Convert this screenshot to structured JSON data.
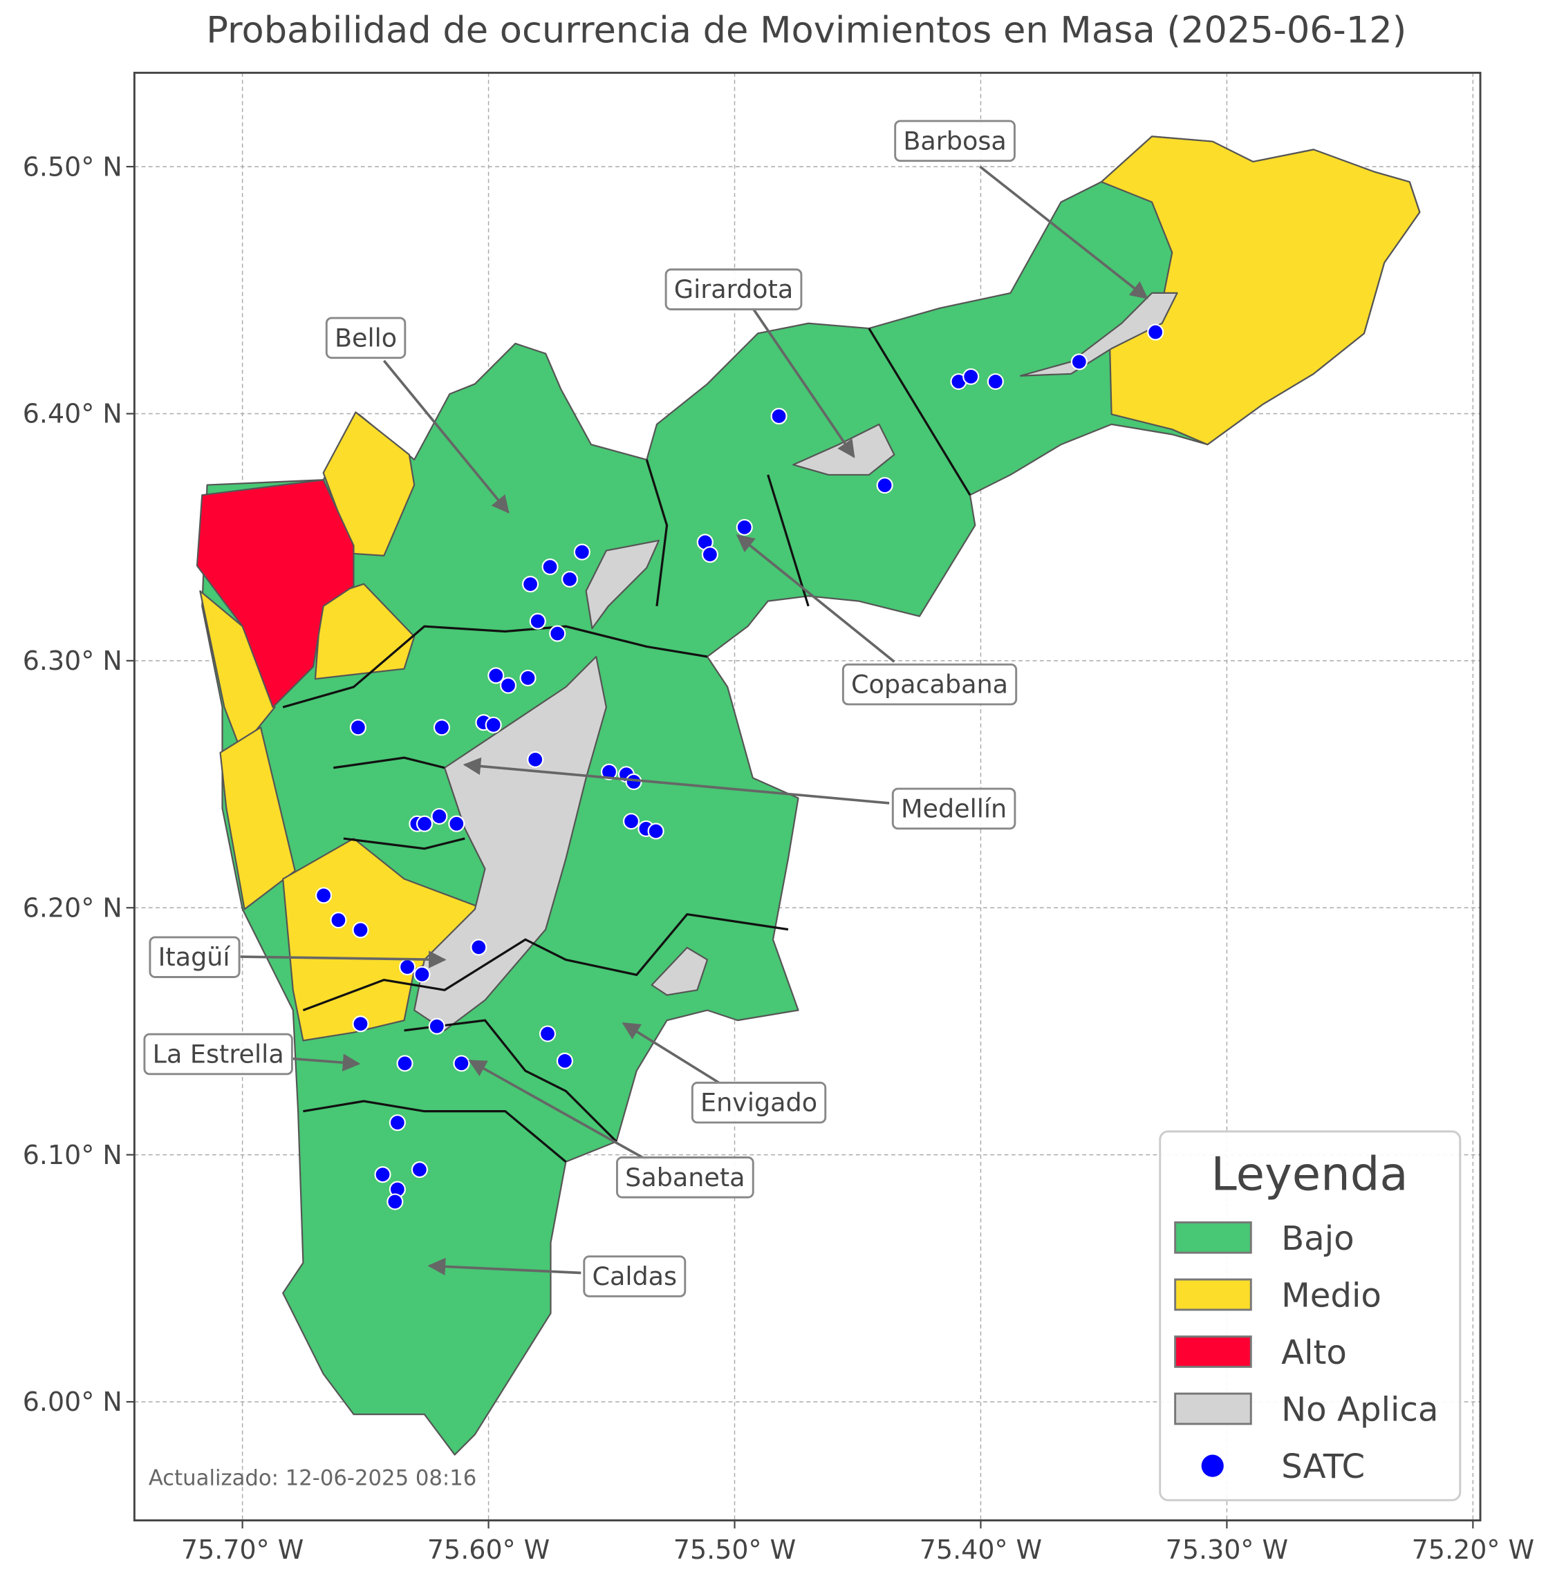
{
  "title": "Probabilidad de ocurrencia de Movimientos en Masa (2025-06-12)",
  "map": {
    "xlim": [
      -75.7439,
      -75.197
    ],
    "ylim": [
      5.952,
      6.538
    ],
    "xticks": [
      {
        "value": -75.7,
        "label": "75.70° W"
      },
      {
        "value": -75.6,
        "label": "75.60° W"
      },
      {
        "value": -75.5,
        "label": "75.50° W"
      },
      {
        "value": -75.4,
        "label": "75.40° W"
      },
      {
        "value": -75.3,
        "label": "75.30° W"
      },
      {
        "value": -75.2,
        "label": "75.20° W"
      }
    ],
    "yticks": [
      {
        "value": 6.0,
        "label": "6.00° N"
      },
      {
        "value": 6.1,
        "label": "6.10° N"
      },
      {
        "value": 6.2,
        "label": "6.20° N"
      },
      {
        "value": 6.3,
        "label": "6.30° N"
      },
      {
        "value": 6.4,
        "label": "6.40° N"
      },
      {
        "value": 6.5,
        "label": "6.50° N"
      }
    ],
    "grid": true
  },
  "stations": {
    "name": "SATC",
    "color": "#0000ff",
    "lon": [
      -75.329,
      -75.36,
      -75.409,
      -75.404,
      -75.394,
      -75.482,
      -75.439,
      -75.496,
      -75.512,
      -75.51,
      -75.562,
      -75.575,
      -75.583,
      -75.567,
      -75.58,
      -75.572,
      -75.597,
      -75.592,
      -75.584,
      -75.653,
      -75.619,
      -75.602,
      -75.598,
      -75.581,
      -75.551,
      -75.544,
      -75.541,
      -75.542,
      -75.536,
      -75.532,
      -75.629,
      -75.626,
      -75.62,
      -75.613,
      -75.667,
      -75.661,
      -75.652,
      -75.604,
      -75.633,
      -75.627,
      -75.652,
      -75.621,
      -75.576,
      -75.569,
      -75.634,
      -75.611,
      -75.637,
      -75.643,
      -75.628,
      -75.637,
      -75.638
    ],
    "lat": [
      6.433,
      6.421,
      6.413,
      6.415,
      6.413,
      6.399,
      6.371,
      6.354,
      6.348,
      6.343,
      6.344,
      6.338,
      6.331,
      6.333,
      6.316,
      6.311,
      6.294,
      6.29,
      6.293,
      6.273,
      6.273,
      6.275,
      6.274,
      6.26,
      6.255,
      6.254,
      6.251,
      6.235,
      6.232,
      6.231,
      6.234,
      6.234,
      6.237,
      6.234,
      6.205,
      6.195,
      6.191,
      6.184,
      6.176,
      6.173,
      6.153,
      6.152,
      6.149,
      6.138,
      6.137,
      6.137,
      6.113,
      6.092,
      6.094,
      6.086,
      6.081
    ]
  },
  "annotations": [
    "Barbosa",
    "Girardota",
    "Bello",
    "Copacabana",
    "Medellín",
    "Itagüí",
    "La Estrella",
    "Envigado",
    "Sabaneta",
    "Caldas"
  ],
  "legend": {
    "title": "Leyenda",
    "items": [
      {
        "label": "Bajo",
        "color": "#48c774"
      },
      {
        "label": "Medio",
        "color": "#fbdd2a"
      },
      {
        "label": "Alto",
        "color": "#ff0033"
      },
      {
        "label": "No Aplica",
        "color": "#d3d3d3"
      }
    ]
  },
  "footer": "Actualizado: 12-06-2025 08:16"
}
